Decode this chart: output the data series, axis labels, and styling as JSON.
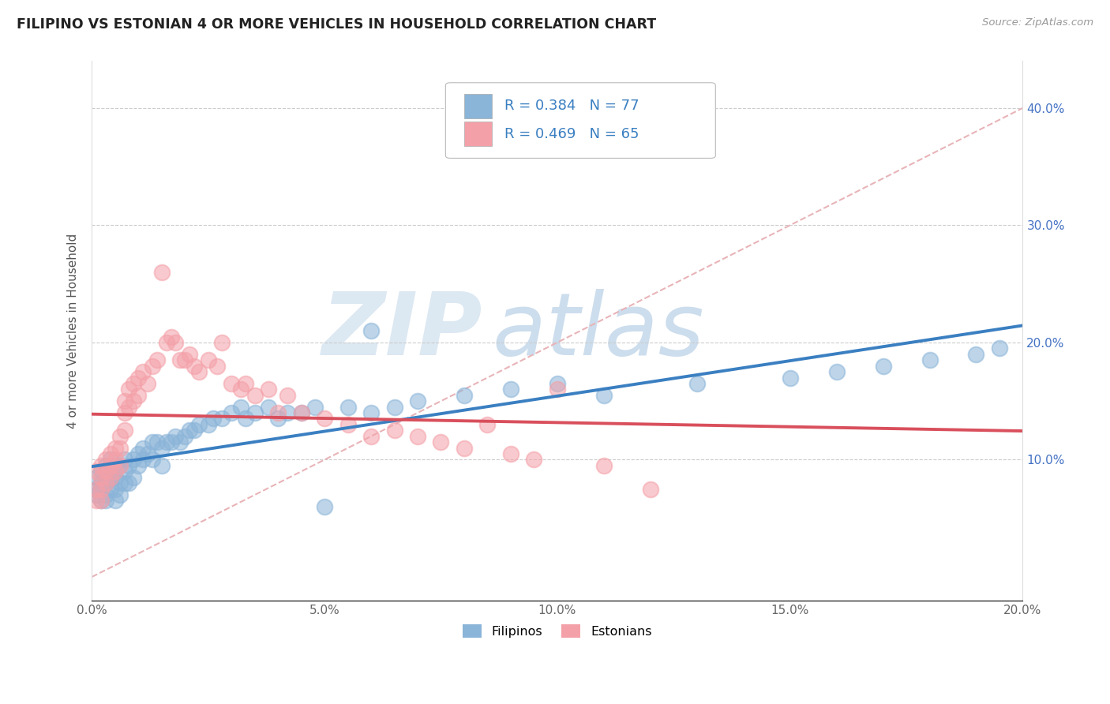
{
  "title": "FILIPINO VS ESTONIAN 4 OR MORE VEHICLES IN HOUSEHOLD CORRELATION CHART",
  "source_text": "Source: ZipAtlas.com",
  "ylabel": "4 or more Vehicles in Household",
  "xlim": [
    0.0,
    0.2
  ],
  "ylim": [
    -0.02,
    0.44
  ],
  "xtick_vals": [
    0.0,
    0.05,
    0.1,
    0.15,
    0.2
  ],
  "xtick_labels": [
    "0.0%",
    "5.0%",
    "10.0%",
    "15.0%",
    "20.0%"
  ],
  "ytick_vals": [
    0.0,
    0.1,
    0.2,
    0.3,
    0.4
  ],
  "ytick_labels": [
    "",
    "10.0%",
    "20.0%",
    "30.0%",
    "40.0%"
  ],
  "filipinos_R": 0.384,
  "filipinos_N": 77,
  "estonians_R": 0.469,
  "estonians_N": 65,
  "blue_color": "#8ab4d8",
  "pink_color": "#f4a0a8",
  "blue_line_color": "#3a7fc1",
  "pink_line_color": "#d94f5c",
  "diag_color": "#e8b4b8",
  "legend_labels": [
    "Filipinos",
    "Estonians"
  ],
  "fil_x": [
    0.001,
    0.001,
    0.001,
    0.002,
    0.002,
    0.002,
    0.002,
    0.003,
    0.003,
    0.003,
    0.003,
    0.003,
    0.004,
    0.004,
    0.004,
    0.004,
    0.005,
    0.005,
    0.005,
    0.005,
    0.006,
    0.006,
    0.006,
    0.007,
    0.007,
    0.007,
    0.008,
    0.008,
    0.009,
    0.009,
    0.01,
    0.01,
    0.011,
    0.011,
    0.012,
    0.013,
    0.013,
    0.014,
    0.015,
    0.015,
    0.016,
    0.017,
    0.018,
    0.019,
    0.02,
    0.021,
    0.022,
    0.023,
    0.025,
    0.026,
    0.028,
    0.03,
    0.032,
    0.033,
    0.035,
    0.038,
    0.04,
    0.042,
    0.045,
    0.048,
    0.05,
    0.055,
    0.06,
    0.065,
    0.07,
    0.08,
    0.09,
    0.1,
    0.11,
    0.13,
    0.15,
    0.16,
    0.17,
    0.18,
    0.19,
    0.195,
    0.06
  ],
  "fil_y": [
    0.075,
    0.085,
    0.07,
    0.08,
    0.09,
    0.075,
    0.065,
    0.085,
    0.095,
    0.08,
    0.07,
    0.065,
    0.09,
    0.1,
    0.085,
    0.075,
    0.095,
    0.085,
    0.075,
    0.065,
    0.095,
    0.08,
    0.07,
    0.1,
    0.09,
    0.08,
    0.095,
    0.08,
    0.1,
    0.085,
    0.105,
    0.095,
    0.11,
    0.1,
    0.105,
    0.115,
    0.1,
    0.115,
    0.11,
    0.095,
    0.115,
    0.115,
    0.12,
    0.115,
    0.12,
    0.125,
    0.125,
    0.13,
    0.13,
    0.135,
    0.135,
    0.14,
    0.145,
    0.135,
    0.14,
    0.145,
    0.135,
    0.14,
    0.14,
    0.145,
    0.06,
    0.145,
    0.14,
    0.145,
    0.15,
    0.155,
    0.16,
    0.165,
    0.155,
    0.165,
    0.17,
    0.175,
    0.18,
    0.185,
    0.19,
    0.195,
    0.21
  ],
  "est_x": [
    0.001,
    0.001,
    0.001,
    0.002,
    0.002,
    0.002,
    0.002,
    0.003,
    0.003,
    0.003,
    0.004,
    0.004,
    0.004,
    0.005,
    0.005,
    0.005,
    0.006,
    0.006,
    0.006,
    0.007,
    0.007,
    0.007,
    0.008,
    0.008,
    0.009,
    0.009,
    0.01,
    0.01,
    0.011,
    0.012,
    0.013,
    0.014,
    0.015,
    0.016,
    0.017,
    0.018,
    0.019,
    0.02,
    0.021,
    0.022,
    0.023,
    0.025,
    0.027,
    0.028,
    0.03,
    0.032,
    0.033,
    0.035,
    0.038,
    0.04,
    0.042,
    0.045,
    0.05,
    0.055,
    0.06,
    0.065,
    0.07,
    0.075,
    0.08,
    0.085,
    0.09,
    0.095,
    0.1,
    0.11,
    0.12
  ],
  "est_y": [
    0.075,
    0.09,
    0.065,
    0.085,
    0.095,
    0.075,
    0.065,
    0.1,
    0.09,
    0.08,
    0.105,
    0.095,
    0.085,
    0.11,
    0.1,
    0.09,
    0.12,
    0.11,
    0.095,
    0.15,
    0.14,
    0.125,
    0.16,
    0.145,
    0.165,
    0.15,
    0.17,
    0.155,
    0.175,
    0.165,
    0.18,
    0.185,
    0.26,
    0.2,
    0.205,
    0.2,
    0.185,
    0.185,
    0.19,
    0.18,
    0.175,
    0.185,
    0.18,
    0.2,
    0.165,
    0.16,
    0.165,
    0.155,
    0.16,
    0.14,
    0.155,
    0.14,
    0.135,
    0.13,
    0.12,
    0.125,
    0.12,
    0.115,
    0.11,
    0.13,
    0.105,
    0.1,
    0.16,
    0.095,
    0.075
  ]
}
